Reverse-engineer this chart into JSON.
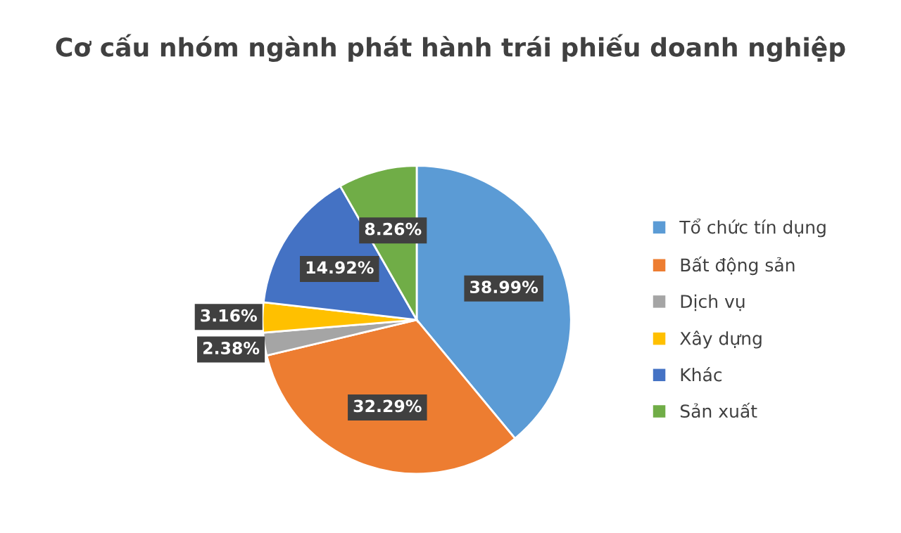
{
  "chart_data": {
    "type": "pie",
    "title": "Cơ cấu nhóm ngành phát hành trái phiếu doanh nghiệp",
    "categories": [
      "Tổ chức tín dụng",
      "Bất động sản",
      "Dịch vụ",
      "Xây dựng",
      "Khác",
      "Sản xuất"
    ],
    "values": [
      38.99,
      32.29,
      2.38,
      3.16,
      14.92,
      8.26
    ],
    "colors": [
      "#5b9bd5",
      "#ed7d31",
      "#a5a5a5",
      "#ffc000",
      "#4472c4",
      "#70ad47"
    ],
    "value_labels": [
      "38.99%",
      "32.29%",
      "2.38%",
      "3.16%",
      "14.92%",
      "8.26%"
    ],
    "legend": "right"
  }
}
